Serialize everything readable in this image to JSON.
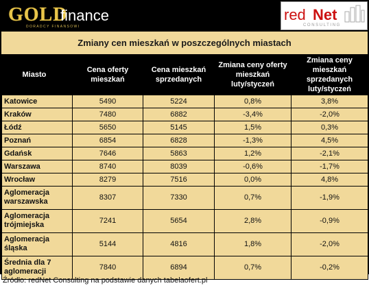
{
  "logos": {
    "gold": {
      "word": "GOLD",
      "finance": "finance",
      "sub": "DORADCY FINANSOWI"
    },
    "rednet": {
      "red": "red",
      "net": "Net",
      "sub": "CONSULTING"
    }
  },
  "chart_data": {
    "type": "table",
    "title": "Zmiany cen mieszkań w poszczególnych miastach",
    "columns": [
      "Miasto",
      "Cena oferty mieszkań",
      "Cena mieszkań sprzedanych",
      "Zmiana ceny oferty mieszkań luty/styczeń",
      "Zmiana ceny mieszkań sprzedanych luty/styczeń"
    ],
    "rows": [
      {
        "city": "Katowice",
        "offer": "5490",
        "sold": "5224",
        "offer_change": "0,8%",
        "sold_change": "3,8%"
      },
      {
        "city": "Kraków",
        "offer": "7480",
        "sold": "6882",
        "offer_change": "-3,4%",
        "sold_change": "-2,0%"
      },
      {
        "city": "Łódź",
        "offer": "5650",
        "sold": "5145",
        "offer_change": "1,5%",
        "sold_change": "0,3%"
      },
      {
        "city": "Poznań",
        "offer": "6854",
        "sold": "6828",
        "offer_change": "-1,3%",
        "sold_change": "4,5%"
      },
      {
        "city": "Gdańsk",
        "offer": "7646",
        "sold": "5863",
        "offer_change": "1,2%",
        "sold_change": "-2,1%"
      },
      {
        "city": "Warszawa",
        "offer": "8740",
        "sold": "8039",
        "offer_change": "-0,6%",
        "sold_change": "-1,7%"
      },
      {
        "city": "Wrocław",
        "offer": "8279",
        "sold": "7516",
        "offer_change": "0,0%",
        "sold_change": "4,8%"
      },
      {
        "city": "Aglomeracja warszawska",
        "offer": "8307",
        "sold": "7330",
        "offer_change": "0,7%",
        "sold_change": "-1,9%"
      },
      {
        "city": "Aglomeracja trójmiejska",
        "offer": "7241",
        "sold": "5654",
        "offer_change": "2,8%",
        "sold_change": "-0,9%"
      },
      {
        "city": "Aglomeracja śląska",
        "offer": "5144",
        "sold": "4816",
        "offer_change": "1,8%",
        "sold_change": "-2,0%"
      },
      {
        "city": "Średnia dla 7 aglomeracji",
        "offer": "7840",
        "sold": "6894",
        "offer_change": "0,7%",
        "sold_change": "-0,2%"
      }
    ],
    "source": "Źródło: redNet Consulting na podstawie danych tabelaofert.pl"
  },
  "colors": {
    "header_bg": "#000000",
    "cell_bg": "#f1d99a",
    "gold": "#e8c54a",
    "rednet": "#cc1111"
  }
}
